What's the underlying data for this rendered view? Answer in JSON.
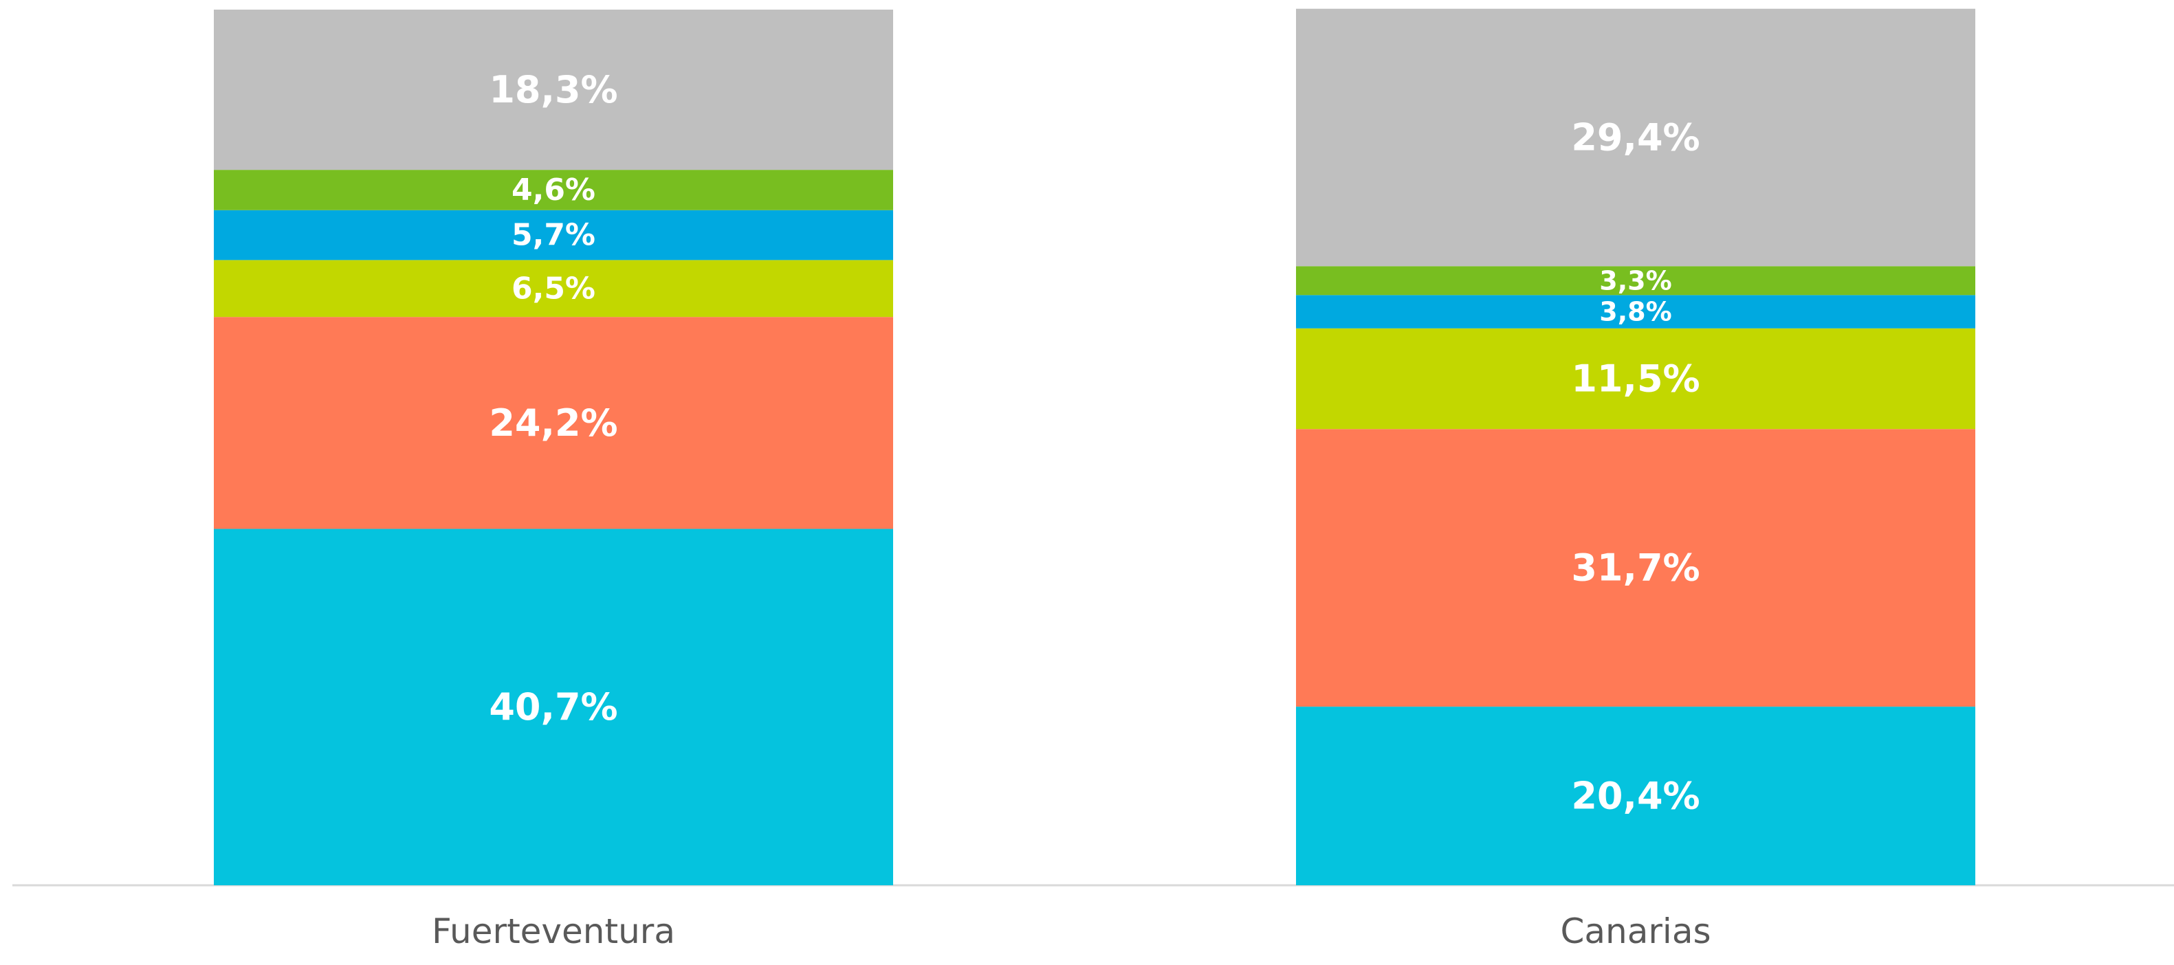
{
  "chart_data": {
    "type": "bar",
    "stacked": true,
    "categories": [
      "Fuerteventura",
      "Canarias"
    ],
    "ylim": [
      0,
      100
    ],
    "grid": false,
    "series": [
      {
        "color": "#05C3DE",
        "values": [
          40.7,
          20.4
        ],
        "labels": [
          "40,7%",
          "20,4%"
        ]
      },
      {
        "color": "#FF7A56",
        "values": [
          24.2,
          31.7
        ],
        "labels": [
          "24,2%",
          "31,7%"
        ]
      },
      {
        "color": "#C2D700",
        "values": [
          6.5,
          11.5
        ],
        "labels": [
          "6,5%",
          "11,5%"
        ]
      },
      {
        "color": "#00A9E0",
        "values": [
          5.7,
          3.8
        ],
        "labels": [
          "5,7%",
          "3,8%"
        ]
      },
      {
        "color": "#78BE20",
        "values": [
          4.6,
          3.3
        ],
        "labels": [
          "4,6%",
          "3,3%"
        ]
      },
      {
        "color": "#BFBFBF",
        "values": [
          18.3,
          29.4
        ],
        "labels": [
          "18,3%",
          "29,4%"
        ]
      }
    ]
  }
}
